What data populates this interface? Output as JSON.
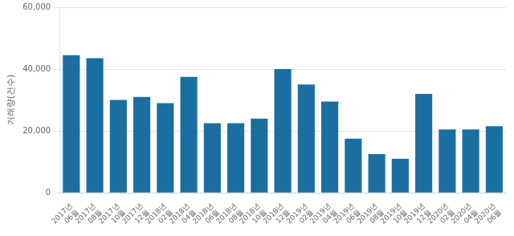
{
  "chart_data": {
    "type": "bar",
    "categories": [
      "2017년\n06월",
      "2017년\n08월",
      "2017년\n10월",
      "2017년\n12월",
      "2018년\n02월",
      "2018년\n04월",
      "2018년\n06월",
      "2018년\n08월",
      "2018년\n10월",
      "2018년\n12월",
      "2019년\n02월",
      "2019년\n04월",
      "2019년\n06월",
      "2019년\n08월",
      "2019년\n10월",
      "2019년\n12월",
      "2020년\n02월",
      "2020년\n04월",
      "2020년\n06월"
    ],
    "values": [
      44500,
      43500,
      30000,
      31000,
      29000,
      37500,
      22500,
      22500,
      24000,
      40000,
      35000,
      29500,
      17500,
      12500,
      11000,
      32000,
      20500,
      20500,
      21500
    ],
    "color": "#1a6fa0",
    "ylabel": "거래량(건수)",
    "ylim": [
      0,
      60000
    ],
    "yticks": [
      0,
      {
        "value": 20000,
        "label": "20,000"
      },
      {
        "value": 40000,
        "label": "40,000"
      },
      {
        "value": 60000,
        "label": "60,000"
      }
    ],
    "grid": true
  }
}
